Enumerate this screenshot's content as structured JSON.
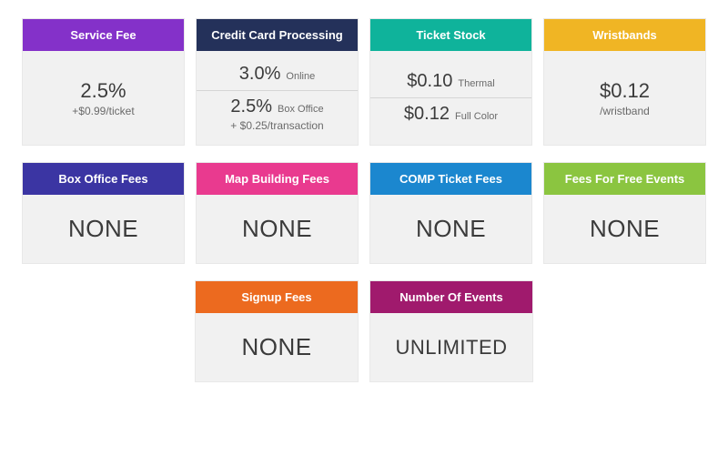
{
  "colors": {
    "purple": "#8431c9",
    "navy": "#24315a",
    "teal": "#0fb39b",
    "yellow": "#f0b524",
    "indigo": "#3b35a3",
    "magenta": "#e93a8f",
    "blue": "#1b87cf",
    "green": "#8bc540",
    "orange": "#ec6a1f",
    "plum": "#a01a6d"
  },
  "cards": {
    "service_fee": {
      "title": "Service Fee",
      "main": "2.5%",
      "sub": "+$0.99/ticket"
    },
    "cc": {
      "title": "Credit Card Processing",
      "row1_val": "3.0%",
      "row1_label": "Online",
      "row2_val": "2.5%",
      "row2_label": "Box Office",
      "row2_sub": "+ $0.25/transaction"
    },
    "stock": {
      "title": "Ticket Stock",
      "row1_val": "$0.10",
      "row1_label": "Thermal",
      "row2_val": "$0.12",
      "row2_label": "Full Color"
    },
    "wrist": {
      "title": "Wristbands",
      "main": "$0.12",
      "sub": "/wristband"
    },
    "box_office": {
      "title": "Box Office Fees",
      "value": "NONE"
    },
    "map": {
      "title": "Map Building Fees",
      "value": "NONE"
    },
    "comp": {
      "title": "COMP Ticket Fees",
      "value": "NONE"
    },
    "free": {
      "title": "Fees For Free Events",
      "value": "NONE"
    },
    "signup": {
      "title": "Signup Fees",
      "value": "NONE"
    },
    "events": {
      "title": "Number Of Events",
      "value": "UNLIMITED"
    }
  }
}
